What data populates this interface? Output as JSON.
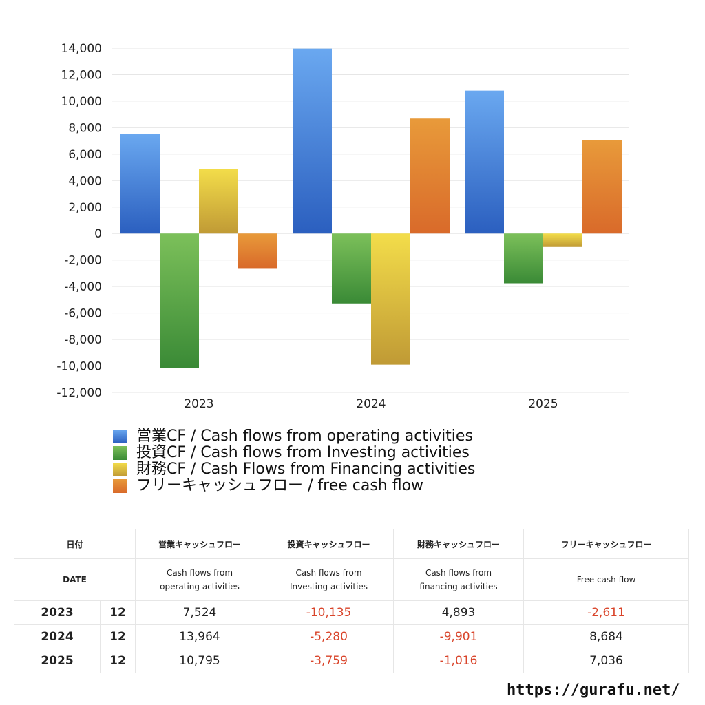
{
  "chart_data": {
    "type": "bar",
    "categories": [
      "2023",
      "2024",
      "2025"
    ],
    "series": [
      {
        "name": "営業CF / Cash flows from operating activities",
        "values": [
          7524,
          13964,
          10795
        ],
        "color_top": "#6aa8f0",
        "color_bottom": "#2b5fbf"
      },
      {
        "name": "投資CF / Cash flows from Investing activities",
        "values": [
          -10135,
          -5280,
          -3759
        ],
        "color_top": "#7cc05a",
        "color_bottom": "#3a8a36"
      },
      {
        "name": "財務CF / Cash Flows from Financing activities",
        "values": [
          4893,
          -9901,
          -1016
        ],
        "color_top": "#f3dd4a",
        "color_bottom": "#c09a35"
      },
      {
        "name": "フリーキャッシュフロー / free cash flow",
        "values": [
          -2611,
          8684,
          7036
        ],
        "color_top": "#e89a3a",
        "color_bottom": "#d96a2a"
      }
    ],
    "yticks": [
      "14,000",
      "12,000",
      "10,000",
      "8,000",
      "6,000",
      "4,000",
      "2,000",
      "0",
      "-2,000",
      "-4,000",
      "-6,000",
      "-8,000",
      "-10,000",
      "-12,000"
    ],
    "ylim": [
      -12000,
      14000
    ],
    "grid": true,
    "legend": "bottom"
  },
  "table": {
    "header_jp": [
      "日付",
      "営業キャッシュフロー",
      "投資キャッシュフロー",
      "財務キャッシュフロー",
      "フリーキャッシュフロー"
    ],
    "header_en": {
      "date": "DATE",
      "operating": [
        "Cash flows from",
        "operating activities"
      ],
      "investing": [
        "Cash flows from",
        "Investing activities"
      ],
      "financing": [
        "Cash flows from",
        "financing activities"
      ],
      "free": "Free cash flow"
    },
    "rows": [
      {
        "year": "2023",
        "month": "12",
        "operating": "7,524",
        "investing": "-10,135",
        "financing": "4,893",
        "free": "-2,611"
      },
      {
        "year": "2024",
        "month": "12",
        "operating": "13,964",
        "investing": "-5,280",
        "financing": "-9,901",
        "free": "8,684"
      },
      {
        "year": "2025",
        "month": "12",
        "operating": "10,795",
        "investing": "-3,759",
        "financing": "-1,016",
        "free": "7,036"
      }
    ]
  },
  "footer": {
    "url": "https://gurafu.net/"
  }
}
